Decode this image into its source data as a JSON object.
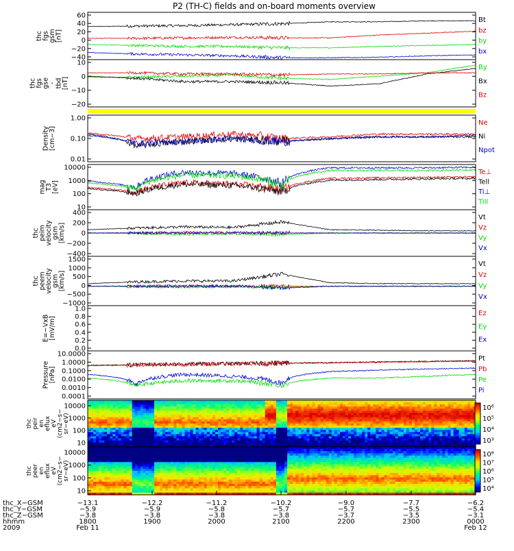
{
  "chart_data": {
    "type": "line",
    "title": "P2 (TH-C) fields and on-board moments overview",
    "panels": [
      {
        "id": "fgs-gsm",
        "ylabel": [
          "thc",
          "fgs",
          "gsm",
          "[nT]"
        ],
        "yticks": [
          "60",
          "40",
          "20",
          "0",
          "−20",
          "−40"
        ],
        "ylim": [
          -40,
          60
        ],
        "series": [
          {
            "name": "Bt",
            "color": "#000000",
            "profile": [
              30,
              31,
              32,
              34,
              36,
              40,
              40,
              42,
              42
            ]
          },
          {
            "name": "bz",
            "color": "#e00000",
            "profile": [
              5,
              5,
              6,
              7,
              6,
              6,
              12,
              16,
              20
            ]
          },
          {
            "name": "by",
            "color": "#00dd00",
            "profile": [
              -8,
              -10,
              -12,
              -12,
              -15,
              -15,
              -12,
              -10,
              -8
            ]
          },
          {
            "name": "bx",
            "color": "#0000cc",
            "profile": [
              -25,
              -28,
              -30,
              -32,
              -36,
              -36,
              -35,
              -32,
              -30
            ]
          }
        ]
      },
      {
        "id": "fgs-gse",
        "ylabel": [
          "thc",
          "fgs",
          "gse",
          "-",
          "tbd",
          "[nT]"
        ],
        "yticks": [
          "10",
          "0",
          "−10",
          "−20"
        ],
        "ylim": [
          -25,
          18
        ],
        "series": [
          {
            "name": "By",
            "color": "#00dd00",
            "profile": [
              2,
              2,
              3,
              4,
              1,
              0,
              3,
              6,
              13
            ]
          },
          {
            "name": "Bx",
            "color": "#000000",
            "profile": [
              3,
              1,
              -2,
              -2,
              -3,
              -6,
              -4,
              5,
              10
            ]
          },
          {
            "name": "Bz",
            "color": "#e00000",
            "profile": [
              6,
              6,
              5,
              5,
              4,
              5,
              5,
              6,
              6
            ]
          }
        ]
      },
      {
        "id": "density",
        "ylabel": [
          "Density",
          "[cm−3]"
        ],
        "yticks": [
          "1.00",
          "0.10",
          "0.01"
        ],
        "log": true,
        "ylim": [
          0.01,
          10
        ],
        "series": [
          {
            "name": "Ne",
            "color": "#e00000",
            "profile": [
              0.7,
              0.3,
              0.4,
              0.6,
              0.3,
              0.4,
              0.6,
              0.6,
              0.6
            ]
          },
          {
            "name": "Ni",
            "color": "#000000",
            "profile": [
              0.6,
              0.1,
              0.2,
              0.3,
              0.2,
              0.3,
              0.4,
              0.4,
              0.4
            ]
          },
          {
            "name": "Npot",
            "color": "#0000cc",
            "profile": [
              0.5,
              0.15,
              0.2,
              0.3,
              0.2,
              0.3,
              0.4,
              0.4,
              0.5
            ]
          }
        ]
      },
      {
        "id": "temperature",
        "ylabel": [
          "mag",
          "T3",
          "[eV]"
        ],
        "yticks": [
          "10000",
          "1000",
          "100",
          "10"
        ],
        "log": true,
        "ylim": [
          10,
          10000
        ],
        "series": [
          {
            "name": "Te⊥",
            "color": "#e00000",
            "profile": [
              300,
              150,
              600,
              500,
              200,
              1200,
              1300,
              1400,
              1500
            ]
          },
          {
            "name": "Tell",
            "color": "#000000",
            "profile": [
              250,
              120,
              500,
              400,
              150,
              900,
              1000,
              1100,
              1200
            ]
          },
          {
            "name": "Ti⊥",
            "color": "#0000cc",
            "profile": [
              800,
              300,
              3000,
              2500,
              500,
              6000,
              6000,
              6000,
              6500
            ]
          },
          {
            "name": "Till",
            "color": "#00dd00",
            "profile": [
              600,
              250,
              2000,
              1800,
              400,
              4000,
              4000,
              4000,
              4500
            ]
          }
        ]
      },
      {
        "id": "peim-velocity",
        "ylabel": [
          "thc",
          "peim",
          "velocity",
          "gsm",
          "[km/s]"
        ],
        "yticks": [
          "400",
          "200",
          "0",
          "−200",
          "−400"
        ],
        "ylim": [
          -420,
          420
        ],
        "series": [
          {
            "name": "Vt",
            "color": "#000000",
            "profile": [
              60,
              90,
              110,
              100,
              200,
              60,
              50,
              40,
              40
            ]
          },
          {
            "name": "Vz",
            "color": "#e00000",
            "profile": [
              0,
              0,
              10,
              0,
              0,
              0,
              0,
              0,
              0
            ]
          },
          {
            "name": "Vy",
            "color": "#00dd00",
            "profile": [
              0,
              -10,
              -20,
              -10,
              -30,
              0,
              0,
              0,
              0
            ]
          },
          {
            "name": "Vx",
            "color": "#0000cc",
            "profile": [
              0,
              5,
              0,
              5,
              0,
              0,
              0,
              0,
              0
            ]
          }
        ]
      },
      {
        "id": "peem-velocity",
        "ylabel": [
          "thc",
          "peem",
          "velocity",
          "gsm",
          "[km/s]"
        ],
        "yticks": [
          "1500",
          "1000",
          "500",
          "0",
          "−500",
          "−1000"
        ],
        "ylim": [
          -1100,
          1700
        ],
        "series": [
          {
            "name": "Vt",
            "color": "#000000",
            "profile": [
              150,
              250,
              300,
              300,
              700,
              200,
              150,
              150,
              150
            ]
          },
          {
            "name": "Vz",
            "color": "#e00000",
            "profile": [
              0,
              0,
              20,
              0,
              0,
              0,
              0,
              0,
              0
            ]
          },
          {
            "name": "Vy",
            "color": "#00dd00",
            "profile": [
              0,
              -20,
              -40,
              -20,
              -60,
              0,
              0,
              0,
              0
            ]
          },
          {
            "name": "Vx",
            "color": "#0000cc",
            "profile": [
              0,
              10,
              0,
              10,
              -100,
              0,
              0,
              0,
              0
            ]
          }
        ]
      },
      {
        "id": "efield",
        "ylabel": [
          "E=−VxB",
          "[mV/m]"
        ],
        "yticks": [
          "1.0",
          "0.8",
          "0.6",
          "0.4",
          "0.2",
          "0.0"
        ],
        "ylim": [
          0,
          1
        ],
        "series": [
          {
            "name": "Ez",
            "color": "#e00000",
            "profile": []
          },
          {
            "name": "Ey",
            "color": "#00dd00",
            "profile": []
          },
          {
            "name": "Ex",
            "color": "#0000cc",
            "profile": []
          }
        ]
      },
      {
        "id": "pressure",
        "ylabel": [
          "Pressure",
          "[nPa]"
        ],
        "yticks": [
          "10.0000",
          "1.0000",
          "0.1000",
          "0.0100",
          "0.0010",
          "0.0001"
        ],
        "log": true,
        "ylim": [
          0.0001,
          20
        ],
        "series": [
          {
            "name": "Pt",
            "color": "#000000",
            "profile": [
              0.5,
              0.6,
              0.7,
              0.8,
              0.9,
              1.0,
              1.2,
              1.4,
              1.6
            ]
          },
          {
            "name": "Pb",
            "color": "#e00000",
            "profile": [
              0.45,
              0.55,
              0.65,
              0.75,
              0.85,
              0.95,
              1.1,
              1.3,
              1.5
            ]
          },
          {
            "name": "Pe",
            "color": "#00dd00",
            "profile": [
              0.02,
              0.003,
              0.01,
              0.01,
              0.003,
              0.02,
              0.02,
              0.03,
              0.05
            ]
          },
          {
            "name": "Pi",
            "color": "#0000cc",
            "profile": [
              0.05,
              0.004,
              0.05,
              0.03,
              0.005,
              0.1,
              0.15,
              0.2,
              0.25
            ]
          }
        ]
      }
    ],
    "spectrograms": [
      {
        "id": "peir",
        "ylabel": [
          "thc",
          "peir",
          "en",
          "eflux",
          "eV",
          "(cm2−s−",
          "sr−eV)"
        ],
        "yticks": [
          "10000",
          "1000",
          "100",
          "10"
        ],
        "colorbar": [
          "10⁶",
          "10⁵",
          "10⁴",
          "10³"
        ]
      },
      {
        "id": "peer",
        "ylabel": [
          "thc",
          "peer",
          "en",
          "eflux",
          "eV",
          "(cm2−s−",
          "sr−eV)"
        ],
        "yticks": [
          "10000",
          "1000",
          "100",
          "10"
        ],
        "colorbar": [
          "10⁸",
          "10⁷",
          "10⁶",
          "10⁵",
          "10⁴"
        ]
      }
    ],
    "x_axis": {
      "rows": [
        {
          "label": "thc_X−GSM",
          "values": [
            "−13.1",
            "−12.2",
            "−11.2",
            "−10.2",
            "−9.0",
            "−7.7",
            "−6.2"
          ]
        },
        {
          "label": "thc_Y−GSM",
          "values": [
            "−5.9",
            "−5.9",
            "−5.8",
            "−5.7",
            "−5.7",
            "−5.5",
            "−5.4"
          ]
        },
        {
          "label": "thc_Z−GSM",
          "values": [
            "−3.8",
            "−3.8",
            "−3.8",
            "−3.8",
            "−3.7",
            "−3.5",
            "−3.1"
          ]
        },
        {
          "label": "hhmm",
          "values": [
            "1800",
            "1900",
            "2000",
            "2100",
            "2200",
            "2300",
            "0000"
          ]
        },
        {
          "label": "2009",
          "values": [
            "Feb 11",
            "",
            "",
            "",
            "",
            "",
            "Feb 12"
          ]
        }
      ]
    }
  }
}
